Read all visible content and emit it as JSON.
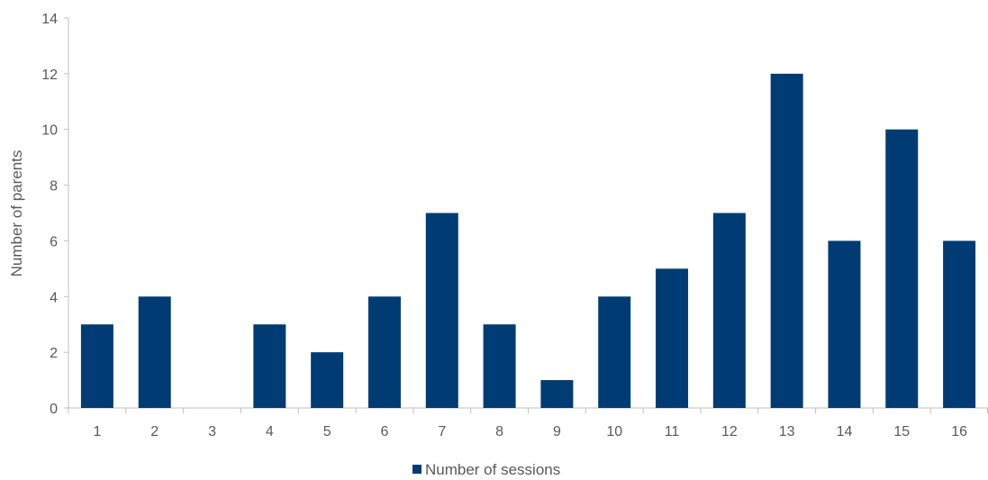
{
  "chart_data": {
    "type": "bar",
    "title": "",
    "xlabel": "",
    "ylabel": "Number of parents",
    "categories": [
      "1",
      "2",
      "3",
      "4",
      "5",
      "6",
      "7",
      "8",
      "9",
      "10",
      "11",
      "12",
      "13",
      "14",
      "15",
      "16"
    ],
    "series": [
      {
        "name": "Number of sessions",
        "values": [
          3,
          4,
          0,
          3,
          2,
          4,
          7,
          3,
          1,
          4,
          5,
          7,
          12,
          6,
          10,
          6
        ]
      }
    ],
    "ylim": [
      0,
      14
    ],
    "yticks": [
      0,
      2,
      4,
      6,
      8,
      10,
      12,
      14
    ],
    "grid": false,
    "legend_position": "bottom",
    "bar_color": "#003c73",
    "axis_color": "#bfbfbf",
    "text_color": "#595959"
  }
}
